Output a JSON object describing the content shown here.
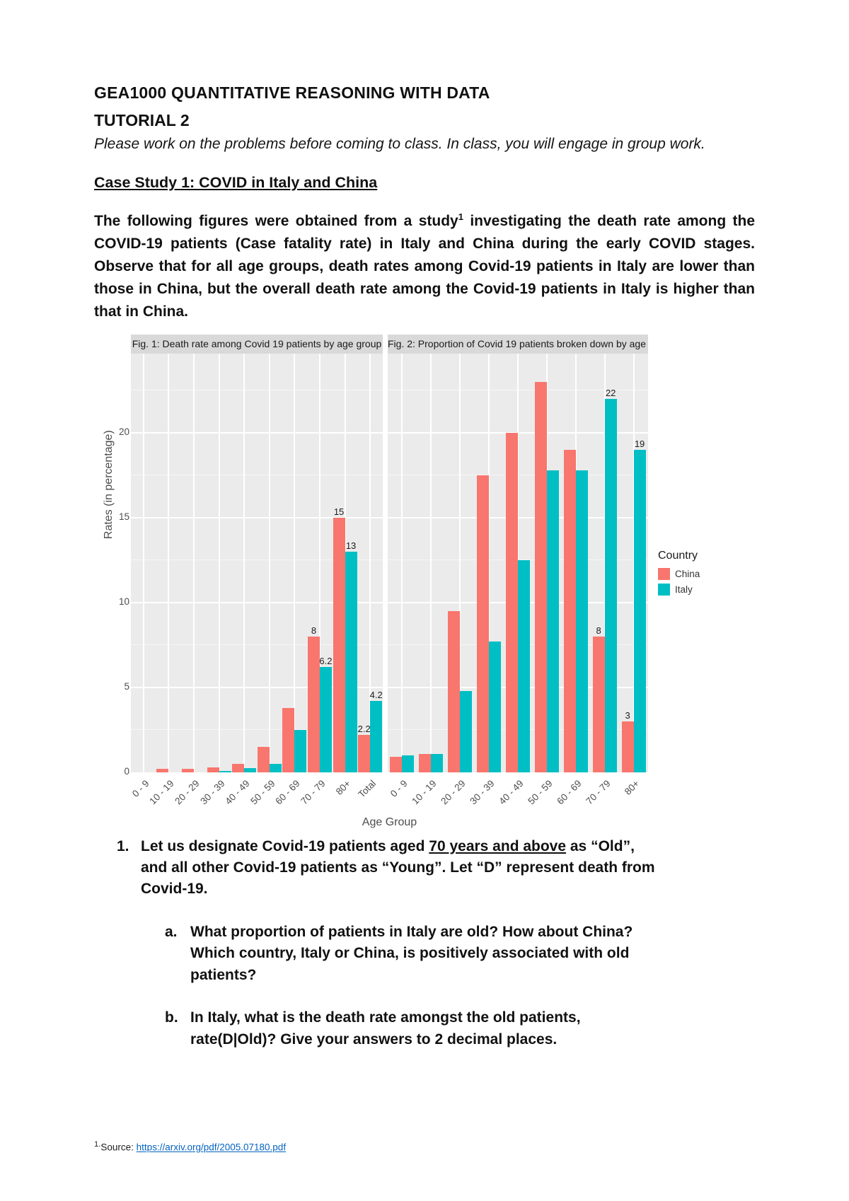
{
  "doc": {
    "title": "GEA1000 QUANTITATIVE REASONING WITH DATA",
    "subtitle": "TUTORIAL 2",
    "intro": "Please work on the problems before coming to class. In class, you will engage in group work.",
    "case_study_heading": "Case Study 1: COVID in Italy and China",
    "paragraph_pre": "The following figures were obtained from a study",
    "paragraph_sup": "1",
    "paragraph_post": " investigating the death rate among the COVID-19 patients (Case fatality rate) in Italy and China during the early COVID stages. Observe that for all age groups, death rates among Covid-19 patients in Italy are lower than those in China, but the overall death rate among the Covid-19 patients in Italy is higher than that in China."
  },
  "chart_shared": {
    "xlabel": "Age Group",
    "ylabel": "Rates (in percentage)",
    "yticks": [
      0,
      5,
      10,
      15,
      20
    ],
    "ylim": [
      0,
      24.7
    ],
    "panel_bg": "#EBEBEB",
    "strip_bg": "#D9D9D9",
    "grid_color": "#FFFFFF"
  },
  "legend": {
    "title": "Country",
    "entries": [
      {
        "label": "China",
        "color": "#F8766D"
      },
      {
        "label": "Italy",
        "color": "#00BFC4"
      }
    ]
  },
  "chart_data": [
    {
      "type": "bar",
      "title": "Fig. 1: Death rate among Covid 19 patients by age group",
      "categories": [
        "0 - 9",
        "10 - 19",
        "20 - 29",
        "30 - 39",
        "40 - 49",
        "50 - 59",
        "60 - 69",
        "70 - 79",
        "80+",
        "Total"
      ],
      "xlabel": "Age Group",
      "ylabel": "Rates (in percentage)",
      "ylim": [
        0,
        24.7
      ],
      "grid": true,
      "series": [
        {
          "name": "China",
          "color": "#F8766D",
          "values": [
            0,
            0.2,
            0.2,
            0.3,
            0.5,
            1.5,
            3.8,
            8,
            15,
            2.2
          ],
          "labels": [
            "",
            "",
            "",
            "",
            "",
            "",
            "",
            "8",
            "15",
            "2.2"
          ]
        },
        {
          "name": "Italy",
          "color": "#00BFC4",
          "values": [
            0,
            0,
            0,
            0.1,
            0.25,
            0.5,
            2.5,
            6.2,
            13,
            4.2
          ],
          "labels": [
            "",
            "",
            "",
            "",
            "",
            "",
            "",
            "6.2",
            "13",
            "4.2"
          ]
        }
      ]
    },
    {
      "type": "bar",
      "title": "Fig. 2: Proportion of Covid 19 patients broken down by age group",
      "categories": [
        "0 - 9",
        "10 - 19",
        "20 - 29",
        "30 - 39",
        "40 - 49",
        "50 - 59",
        "60 - 69",
        "70 - 79",
        "80+"
      ],
      "xlabel": "Age Group",
      "ylabel": "Rates (in percentage)",
      "ylim": [
        0,
        24.7
      ],
      "grid": true,
      "series": [
        {
          "name": "China",
          "color": "#F8766D",
          "values": [
            0.9,
            1.1,
            9.5,
            17.5,
            20,
            23,
            19,
            8,
            3
          ],
          "labels": [
            "",
            "",
            "",
            "",
            "",
            "",
            "",
            "8",
            "3"
          ]
        },
        {
          "name": "Italy",
          "color": "#00BFC4",
          "values": [
            1,
            1.1,
            4.8,
            7.7,
            12.5,
            17.8,
            17.8,
            22,
            19
          ],
          "labels": [
            "",
            "",
            "",
            "",
            "",
            "",
            "",
            "22",
            "19"
          ]
        }
      ]
    }
  ],
  "questions": {
    "q1": {
      "number": "1.",
      "pre": "Let us designate Covid-19 patients aged ",
      "emph": "70 years and above",
      "post": " as “Old”, and all other Covid-19 patients as “Young”. Let “D” represent death from Covid-19."
    },
    "qa": {
      "letter": "a.",
      "text": "What proportion of patients in Italy are old? How about China? Which country, Italy or China, is positively associated with old patients?"
    },
    "qb": {
      "letter": "b.",
      "text": "In Italy, what is the death rate amongst the old patients, rate(D|Old)? Give your answers to 2 decimal places."
    }
  },
  "footnote": {
    "sup": "1.",
    "label": "Source: ",
    "url": "https://arxiv.org/pdf/2005.07180.pdf"
  }
}
